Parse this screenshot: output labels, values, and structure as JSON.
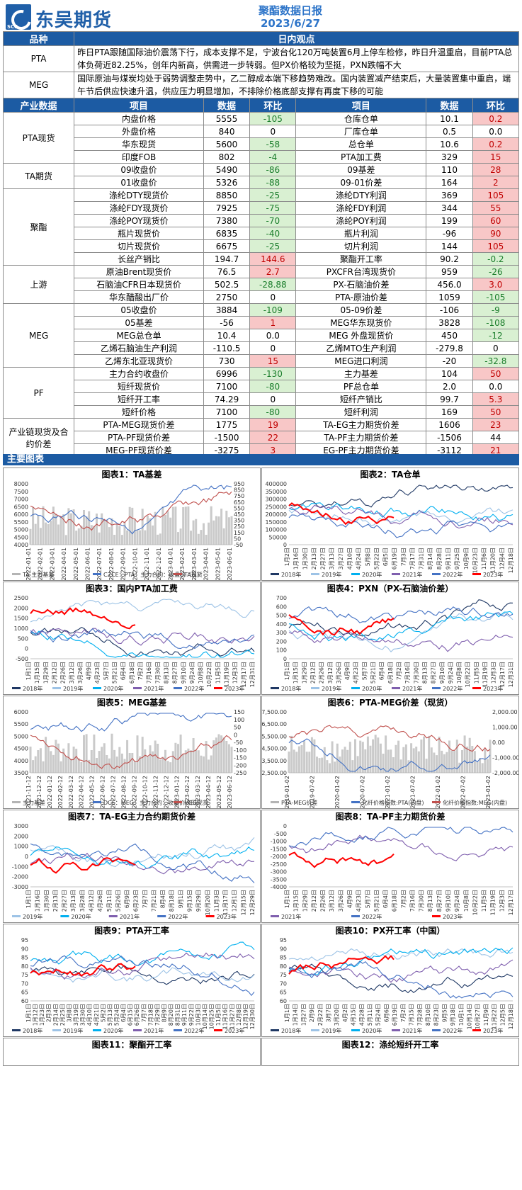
{
  "header": {
    "company": "东吴期货",
    "company_sub": "SCF",
    "title": "聚酯数据日报",
    "date": "2023/6/27"
  },
  "views": {
    "col1": "品种",
    "col2": "日内观点",
    "rows": [
      {
        "name": "PTA",
        "text": "昨日PTA跟随国际油价震荡下行，成本支撑不足，宁波台化120万吨装置6月上停车检修，昨日升温重启，目前PTA总体负荷近82.25%，创年内新高，供需进一步转弱。但PX价格较为坚挺，PXN跌幅不大"
      },
      {
        "name": "MEG",
        "text": "国际原油与煤炭均处于弱势调整走势中，乙二醇成本端下移趋势难改。国内装置减产结束后，大量装置集中重启，端午节后供应快速升温，供应压力明显增加，不排除价格底部支撑有再度下移的可能"
      }
    ]
  },
  "data_table": {
    "headers": [
      "产业数据",
      "项目",
      "数据",
      "环比",
      "项目",
      "数据",
      "环比"
    ],
    "groups": [
      {
        "cat": "PTA现货",
        "rows": [
          {
            "a": "内盘价格",
            "av": "5555",
            "ac": "-105",
            "acs": "green",
            "b": "仓库仓单",
            "bv": "10.1",
            "bc": "0.2",
            "bcs": "red"
          },
          {
            "a": "外盘价格",
            "av": "840",
            "ac": "0",
            "acs": "",
            "b": "厂库仓单",
            "bv": "0.5",
            "bc": "0.0",
            "bcs": ""
          },
          {
            "a": "华东现货",
            "av": "5600",
            "ac": "-58",
            "acs": "green",
            "b": "总仓单",
            "bv": "10.6",
            "bc": "0.2",
            "bcs": "red"
          },
          {
            "a": "印度FOB",
            "av": "802",
            "ac": "-4",
            "acs": "green",
            "b": "PTA加工费",
            "bv": "329",
            "bc": "15",
            "bcs": "red"
          }
        ]
      },
      {
        "cat": "TA期货",
        "rows": [
          {
            "a": "09收盘价",
            "av": "5490",
            "ac": "-86",
            "acs": "green",
            "b": "09基差",
            "bv": "110",
            "bc": "28",
            "bcs": "red"
          },
          {
            "a": "01收盘价",
            "av": "5326",
            "ac": "-88",
            "acs": "green",
            "b": "09-01价差",
            "bv": "164",
            "bc": "2",
            "bcs": "red"
          }
        ]
      },
      {
        "cat": "聚酯",
        "rows": [
          {
            "a": "涤纶DTY现货价",
            "av": "8850",
            "ac": "-25",
            "acs": "green",
            "b": "涤纶DTY利润",
            "bv": "369",
            "bc": "105",
            "bcs": "red"
          },
          {
            "a": "涤纶FDY现货价",
            "av": "7925",
            "ac": "-75",
            "acs": "green",
            "b": "涤纶FDY利润",
            "bv": "344",
            "bc": "55",
            "bcs": "red"
          },
          {
            "a": "涤纶POY现货价",
            "av": "7380",
            "ac": "-70",
            "acs": "green",
            "b": "涤纶POY利润",
            "bv": "199",
            "bc": "60",
            "bcs": "red"
          },
          {
            "a": "瓶片现货价",
            "av": "6835",
            "ac": "-40",
            "acs": "green",
            "b": "瓶片利润",
            "bv": "-96",
            "bc": "90",
            "bcs": "red"
          },
          {
            "a": "切片现货价",
            "av": "6675",
            "ac": "-25",
            "acs": "green",
            "b": "切片利润",
            "bv": "144",
            "bc": "105",
            "bcs": "red"
          },
          {
            "a": "长丝产销比",
            "av": "194.7",
            "ac": "144.6",
            "acs": "red",
            "b": "聚酯开工率",
            "bv": "90.2",
            "bc": "-0.2",
            "bcs": "green"
          }
        ]
      },
      {
        "cat": "上游",
        "rows": [
          {
            "a": "原油Brent现货价",
            "av": "76.5",
            "ac": "2.7",
            "acs": "red",
            "b": "PXCFR台湾现货价",
            "bv": "959",
            "bc": "-26",
            "bcs": "green"
          },
          {
            "a": "石脑油CFR日本现货价",
            "av": "502.5",
            "ac": "-28.88",
            "acs": "green",
            "b": "PX-石脑油价差",
            "bv": "456.0",
            "bc": "3.0",
            "bcs": "red"
          },
          {
            "a": "华东醋酸出厂价",
            "av": "2750",
            "ac": "0",
            "acs": "",
            "b": "PTA-原油价差",
            "bv": "1059",
            "bc": "-105",
            "bcs": "green"
          }
        ]
      },
      {
        "cat": "MEG",
        "rows": [
          {
            "a": "05收盘价",
            "av": "3884",
            "ac": "-109",
            "acs": "green",
            "b": "05-09价差",
            "bv": "-106",
            "bc": "-9",
            "bcs": "green"
          },
          {
            "a": "05基差",
            "av": "-56",
            "ac": "1",
            "acs": "red",
            "b": "MEG华东现货价",
            "bv": "3828",
            "bc": "-108",
            "bcs": "green"
          },
          {
            "a": "MEG总仓单",
            "av": "10.4",
            "ac": "0.0",
            "acs": "",
            "b": "MEG 外盘现货价",
            "bv": "450",
            "bc": "-12",
            "bcs": "green"
          },
          {
            "a": "乙烯石脑油生产利润",
            "av": "-110.5",
            "ac": "0",
            "acs": "",
            "b": "乙烯MTO生产利润",
            "bv": "-279.8",
            "bc": "0",
            "bcs": ""
          },
          {
            "a": "乙烯东北亚现货价",
            "av": "730",
            "ac": "15",
            "acs": "red",
            "b": "MEG进口利润",
            "bv": "-20",
            "bc": "-32.8",
            "bcs": "green"
          }
        ]
      },
      {
        "cat": "PF",
        "rows": [
          {
            "a": "主力合约收盘价",
            "av": "6996",
            "ac": "-130",
            "acs": "green",
            "b": "主力基差",
            "bv": "104",
            "bc": "50",
            "bcs": "red"
          },
          {
            "a": "短纤现货价",
            "av": "7100",
            "ac": "-80",
            "acs": "green",
            "b": "PF总仓单",
            "bv": "2.0",
            "bc": "0.0",
            "bcs": ""
          },
          {
            "a": "短纤开工率",
            "av": "74.29",
            "ac": "0",
            "acs": "",
            "b": "短纤产销比",
            "bv": "99.7",
            "bc": "5.3",
            "bcs": "red"
          },
          {
            "a": "短纤价格",
            "av": "7100",
            "ac": "-80",
            "acs": "green",
            "b": "短纤利润",
            "bv": "169",
            "bc": "50",
            "bcs": "red"
          }
        ]
      },
      {
        "cat": "产业链现货及合约价差",
        "rows": [
          {
            "a": "PTA-MEG现货价差",
            "av": "1775",
            "ac": "19",
            "acs": "red",
            "b": "TA-EG主力期货价差",
            "bv": "1606",
            "bc": "23",
            "bcs": "red"
          },
          {
            "a": "PTA-PF现货价差",
            "av": "-1500",
            "ac": "22",
            "acs": "red",
            "b": "TA-PF主力期货价差",
            "bv": "-1506",
            "bc": "44",
            "bcs": ""
          },
          {
            "a": "MEG-PF现货价差",
            "av": "-3275",
            "ac": "3",
            "acs": "red",
            "b": "EG-PF主力期货价差",
            "bv": "-3112",
            "bc": "21",
            "bcs": "red"
          }
        ]
      }
    ]
  },
  "section_label": "主要图表",
  "colors": {
    "c2018": "#1f3864",
    "c2019": "#9dc3e6",
    "c2020": "#00b0f0",
    "c2021": "#7f5fae",
    "c2022": "#4472c4",
    "c2023": "#ff0000",
    "gray": "#b4b4b4",
    "blue": "#4472c4",
    "red": "#c0504d"
  },
  "chart_data": [
    {
      "id": "c1",
      "type": "line",
      "title": "图表1：TA基差",
      "x_ticks": [
        "2022-01-01",
        "2022-02-01",
        "2022-03-01",
        "2022-04-01",
        "2022-05-01",
        "2022-06-01",
        "2022-07-01",
        "2022-08-01",
        "2022-09-01",
        "2022-10-01",
        "2022-11-01",
        "2022-12-01",
        "2023-01-01",
        "2023-02-01",
        "2023-03-01",
        "2023-04-01",
        "2023-05-01",
        "2023-06-01"
      ],
      "y_left": [
        4000,
        4500,
        5000,
        5500,
        6000,
        6500,
        7000,
        7500,
        8000
      ],
      "y_right": [
        -50,
        50,
        150,
        250,
        350,
        450,
        550,
        650,
        750,
        850,
        950
      ],
      "legend": [
        "TA 主力基差",
        "CZCE：PTA：主力合约：收盘价（日）",
        "TA现货"
      ]
    },
    {
      "id": "c2",
      "type": "line",
      "title": "图表2：TA仓单",
      "x_ticks": [
        "1月2日",
        "1月16日",
        "1月30日",
        "2月13日",
        "2月27日",
        "3月13日",
        "3月27日",
        "4月10日",
        "4月24日",
        "5月8日",
        "5月22日",
        "6月5日",
        "6月19日",
        "7月3日",
        "7月17日",
        "7月31日",
        "8月14日",
        "8月28日",
        "9月11日",
        "9月25日",
        "10月9日",
        "10月23日",
        "11月6日",
        "11月20日",
        "12月4日",
        "12月18日"
      ],
      "y_left": [
        0,
        50000,
        100000,
        150000,
        200000,
        250000,
        300000,
        350000,
        400000
      ],
      "legend": [
        "2018年",
        "2019年",
        "2020年",
        "2021年",
        "2022年",
        "2023年"
      ]
    },
    {
      "id": "c3",
      "type": "line",
      "title": "图表3：国内PTA加工费",
      "x_ticks": [
        "1月1日",
        "1月15日",
        "1月29日",
        "2月12日",
        "2月26日",
        "3月12日",
        "3月26日",
        "4月9日",
        "4月23日",
        "5月7日",
        "5月21日",
        "6月4日",
        "6月18日",
        "7月2日",
        "7月16日",
        "7月30日",
        "8月13日",
        "8月27日",
        "9月10日",
        "9月24日",
        "10月8日",
        "10月22日",
        "11月5日",
        "11月19日",
        "12月3日",
        "12月17日",
        "12月31日"
      ],
      "y_left": [
        -500,
        0,
        500,
        1000,
        1500,
        2000,
        2500
      ],
      "legend": [
        "2018年",
        "2019年",
        "2020年",
        "2021年",
        "2022年",
        "2023年"
      ]
    },
    {
      "id": "c4",
      "type": "line",
      "title": "图表4：PXN（PX-石脑油价差）",
      "x_ticks": [
        "1月1日",
        "1月15日",
        "1月29日",
        "2月12日",
        "2月26日",
        "3月12日",
        "3月26日",
        "4月9日",
        "4月23日",
        "5月7日",
        "5月21日",
        "6月4日",
        "6月18日",
        "7月2日",
        "7月16日",
        "7月30日",
        "8月13日",
        "8月27日",
        "9月10日",
        "9月24日",
        "10月8日",
        "10月22日",
        "11月5日",
        "11月19日",
        "12月3日",
        "12月17日",
        "12月31日"
      ],
      "y_left": [
        0,
        100,
        200,
        300,
        400,
        500,
        600,
        700
      ],
      "legend": [
        "2018年",
        "2019年",
        "2020年",
        "2021年",
        "2022年",
        "2023年"
      ]
    },
    {
      "id": "c5",
      "type": "line",
      "title": "图表5：MEG基差",
      "x_ticks": [
        "2021-11-12",
        "2021-12-12",
        "2022-01-12",
        "2022-02-12",
        "2022-03-12",
        "2022-04-12",
        "2022-05-12",
        "2022-06-12",
        "2022-07-12",
        "2022-08-12",
        "2022-09-12",
        "2022-10-12",
        "2022-11-12",
        "2022-12-12",
        "2023-01-12",
        "2023-02-12",
        "2023-03-12",
        "2023-04-12",
        "2023-05-12",
        "2023-06-12"
      ],
      "y_left": [
        3500,
        4000,
        4500,
        5000,
        5500,
        6000
      ],
      "y_right": [
        -250,
        -200,
        -150,
        -100,
        -50,
        0,
        50,
        100,
        150
      ],
      "legend": [
        "主力基差",
        "DCE：MEG：主力合约：收盘价（日）",
        "MEG现货"
      ]
    },
    {
      "id": "c6",
      "type": "line",
      "title": "图表6：PTA-MEG价差（现货）",
      "x_ticks": [
        "2019-01-02",
        "2019-07-02",
        "2020-01-02",
        "2020-07-02",
        "2021-01-02",
        "2021-07-02",
        "2022-01-02",
        "2022-07-02",
        "2023-01-02"
      ],
      "y_left": [
        "2,500.00",
        "3,500.00",
        "4,500.00",
        "5,500.00",
        "6,500.00",
        "7,500.00"
      ],
      "y_right": [
        "-2,000.00",
        "-1,000.00",
        "0.00",
        "1,000.00",
        "2,000.00"
      ],
      "legend": [
        "PTA-MEG价差",
        "化纤价格指数:PTA(内盘)",
        "化纤价格指数:MEG(内盘)"
      ]
    },
    {
      "id": "c7",
      "type": "line",
      "title": "图表7：TA-EG主力合约期货价差",
      "x_ticks": [
        "1月1日",
        "1月16日",
        "1月30日",
        "2月13日",
        "2月27日",
        "3月13日",
        "3月28日",
        "4月12日",
        "4月26日",
        "5月11日",
        "5月26日",
        "6月9日",
        "6月23日",
        "7月7日",
        "7月21日",
        "8月4日",
        "8月18日",
        "9月1日",
        "9月15日",
        "9月29日",
        "10月20日",
        "11月3日",
        "11月17日",
        "12月1日",
        "12月15日",
        "12月29日"
      ],
      "y_left": [
        -3000,
        -2000,
        -1000,
        0,
        1000,
        2000,
        3000
      ],
      "legend": [
        "2019年",
        "2020年",
        "2021年",
        "2022年",
        "2023年"
      ]
    },
    {
      "id": "c8",
      "type": "line",
      "title": "图表8：TA-PF主力期货价差",
      "x_ticks": [
        "1月1日",
        "1月15日",
        "1月29日",
        "2月12日",
        "2月26日",
        "3月12日",
        "3月26日",
        "4月9日",
        "4月23日",
        "5月7日",
        "5月21日",
        "6月4日",
        "6月18日",
        "7月2日",
        "7月16日",
        "7月30日",
        "8月13日",
        "8月27日",
        "9月10日",
        "9月24日",
        "10月8日",
        "10月22日",
        "11月5日",
        "11月19日",
        "12月3日",
        "12月17日"
      ],
      "y_left": [
        -4000,
        -3500,
        -3000,
        -2500,
        -2000,
        -1500,
        -1000,
        -500,
        0
      ],
      "legend": [
        "2021年",
        "2022年",
        "2023年"
      ]
    },
    {
      "id": "c9",
      "type": "line",
      "title": "图表9：PTA开工率",
      "x_ticks": [
        "1月1日",
        "1月12日",
        "1月23日",
        "2月3日",
        "2月14日",
        "2月25日",
        "3月8日",
        "3月19日",
        "3月30日",
        "4月10日",
        "4月21日",
        "5月2日",
        "5月13日",
        "5月24日",
        "6月4日",
        "6月15日",
        "6月26日",
        "7月7日",
        "7月18日",
        "7月29日",
        "8月9日",
        "8月20日",
        "8月31日",
        "9月11日",
        "9月22日",
        "10月3日",
        "10月14日",
        "10月25日",
        "11月5日",
        "11月16日",
        "11月27日",
        "12月8日",
        "12月19日",
        "12月30日"
      ],
      "y_left": [
        60,
        65,
        70,
        75,
        80,
        85,
        90,
        95
      ],
      "legend": [
        "2018年",
        "2019年",
        "2020年",
        "2021年",
        "2022年",
        "2023年"
      ]
    },
    {
      "id": "c10",
      "type": "line",
      "title": "图表10：PX开工率（中国）",
      "x_ticks": [
        "1月1日",
        "1月14日",
        "1月27日",
        "2月9日",
        "2月22日",
        "3月7日",
        "3月20日",
        "4月2日",
        "4月15日",
        "4月28日",
        "5月11日",
        "5月24日",
        "6月6日",
        "6月19日",
        "7月2日",
        "7月15日",
        "7月28日",
        "8月10日",
        "8月23日",
        "9月5日",
        "9月18日",
        "10月1日",
        "10月14日",
        "10月27日",
        "11月9日",
        "11月22日",
        "12月5日",
        "12月18日"
      ],
      "y_left": [
        60,
        65,
        70,
        75,
        80,
        85,
        90,
        95
      ],
      "legend": [
        "2018年",
        "2019年",
        "2020年",
        "2021年",
        "2022年",
        "2023年"
      ]
    }
  ],
  "bottom_titles": [
    "图表11：聚酯开工率",
    "图表12：涤纶短纤开工率"
  ]
}
